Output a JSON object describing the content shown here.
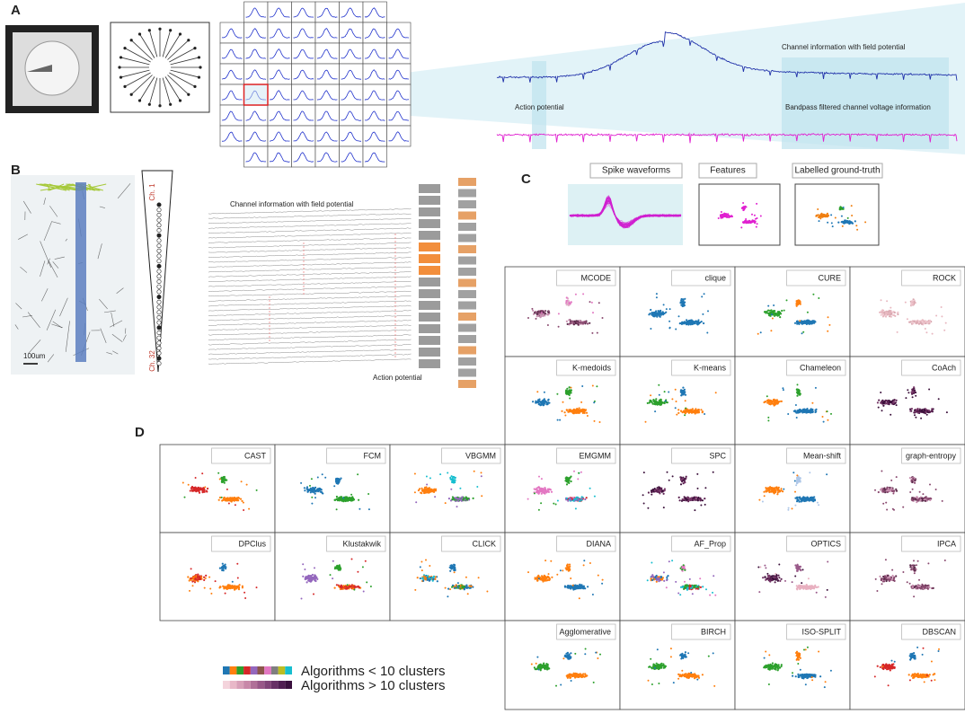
{
  "panel_labels": [
    "A",
    "B",
    "C",
    "D"
  ],
  "panel_a": {
    "field_potential_label": "Channel information with field potential",
    "action_potential_label": "Action potential",
    "bandpass_label": "Bandpass filtered channel voltage information"
  },
  "panel_b": {
    "channel_first": "Ch. 1",
    "channel_last": "Ch. 32",
    "scale_bar": "100um",
    "field_potential_label": "Channel information with field potential",
    "action_potential_label": "Action potential"
  },
  "panel_c": {
    "waveforms": "Spike waveforms",
    "features": "Features",
    "ground_truth": "Labelled ground-truth"
  },
  "algorithm_rows": [
    [
      "MCODE",
      "clique",
      "CURE",
      "ROCK"
    ],
    [
      "K-medoids",
      "K-means",
      "Chameleon",
      "CoAch"
    ],
    [
      "CAST",
      "FCM",
      "VBGMM",
      "EMGMM",
      "SPC",
      "Mean-shift",
      "graph-entropy"
    ],
    [
      "DPClus",
      "Klustakwik",
      "CLICK",
      "DIANA",
      "AF_Prop",
      "OPTICS",
      "IPCA"
    ],
    [
      "Agglomerative",
      "BIRCH",
      "ISO-SPLIT",
      "DBSCAN"
    ]
  ],
  "legend": {
    "few": "Algorithms < 10 clusters",
    "many": "Algorithms > 10 clusters"
  }
}
